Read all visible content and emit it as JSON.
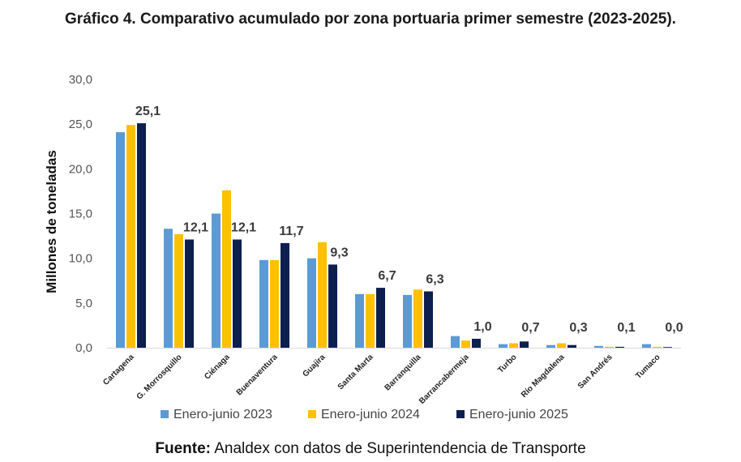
{
  "chart_data": {
    "type": "bar",
    "title": "Gráfico 4. Comparativo acumulado por zona portuaria primer semestre (2023-2025).",
    "ylabel": "Millones de toneladas",
    "xlabel": "",
    "ylim": [
      0,
      30
    ],
    "yticks": [
      "0,0",
      "5,0",
      "10,0",
      "15,0",
      "20,0",
      "25,0",
      "30,0"
    ],
    "grid": false,
    "legend": "bottom",
    "categories": [
      "Cartagena",
      "G. Morrosquillo",
      "Ciénaga",
      "Buenaventura",
      "Guajira",
      "Santa Marta",
      "Barranquilla",
      "Barrancabermeja",
      "Turbo",
      "Río Magdalena",
      "San Andrés",
      "Tumaco"
    ],
    "series": [
      {
        "name": "Enero-junio 2023",
        "color": "#5b9bd5",
        "values": [
          24.1,
          13.3,
          15.0,
          9.8,
          10.0,
          6.0,
          5.9,
          1.3,
          0.4,
          0.3,
          0.2,
          0.4
        ]
      },
      {
        "name": "Enero-junio 2024",
        "color": "#ffc000",
        "values": [
          24.9,
          12.7,
          17.6,
          9.8,
          11.8,
          6.0,
          6.5,
          0.8,
          0.5,
          0.5,
          0.1,
          0.1
        ]
      },
      {
        "name": "Enero-junio 2025",
        "color": "#0d1f4e",
        "values": [
          25.1,
          12.1,
          12.1,
          11.7,
          9.3,
          6.7,
          6.3,
          1.0,
          0.7,
          0.3,
          0.1,
          0.0
        ]
      }
    ],
    "data_labels": [
      "25,1",
      "12,1",
      "12,1",
      "11,7",
      "9,3",
      "6,7",
      "6,3",
      "1,0",
      "0,7",
      "0,3",
      "0,1",
      "0,0"
    ]
  },
  "source": {
    "label": "Fuente:",
    "text": "Analdex con datos de Superintendencia de Transporte"
  }
}
